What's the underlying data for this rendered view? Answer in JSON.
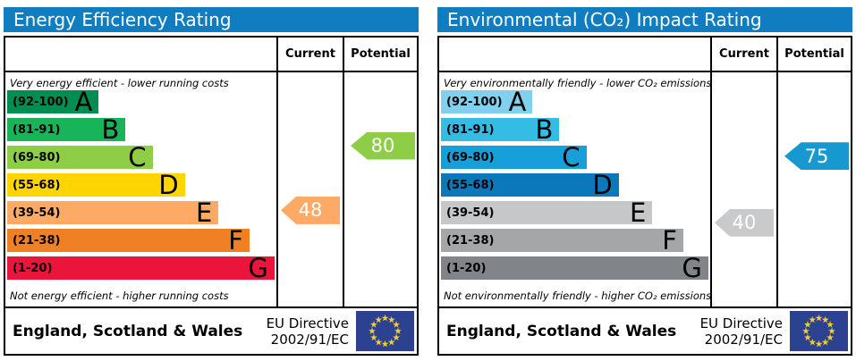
{
  "eu_flag": {
    "background": "#2d4191",
    "star_color": "#f2cf3a"
  },
  "panels": [
    {
      "title": "Energy Efficiency Rating",
      "header_color": "#0f7dc0",
      "current_label": "Current",
      "potential_label": "Potential",
      "top_note": "Very energy efficient - lower running costs",
      "bottom_note": "Not energy efficient - higher running costs",
      "bands": [
        {
          "letter": "A",
          "label": "(92-100)",
          "min": 92,
          "max": 100,
          "color": "#008d52",
          "width_pct": 34
        },
        {
          "letter": "B",
          "label": "(81-91)",
          "min": 81,
          "max": 91,
          "color": "#17b459",
          "width_pct": 44
        },
        {
          "letter": "C",
          "label": "(69-80)",
          "min": 69,
          "max": 80,
          "color": "#8dce46",
          "width_pct": 54
        },
        {
          "letter": "D",
          "label": "(55-68)",
          "min": 55,
          "max": 68,
          "color": "#ffd500",
          "width_pct": 66
        },
        {
          "letter": "E",
          "label": "(39-54)",
          "min": 39,
          "max": 54,
          "color": "#fcaa65",
          "width_pct": 78.5
        },
        {
          "letter": "F",
          "label": "(21-38)",
          "min": 21,
          "max": 38,
          "color": "#ef8023",
          "width_pct": 90
        },
        {
          "letter": "G",
          "label": "(1-20)",
          "min": 1,
          "max": 20,
          "color": "#e9153b",
          "width_pct": 99.3
        }
      ],
      "current": {
        "value": 48,
        "color": "#fcaa65"
      },
      "potential": {
        "value": 80,
        "color": "#8dce46"
      },
      "footer_region": "England, Scotland & Wales",
      "directive_line1": "EU Directive",
      "directive_line2": "2002/91/EC"
    },
    {
      "title": "Environmental (CO₂) Impact Rating",
      "header_color": "#0f7dc0",
      "current_label": "Current",
      "potential_label": "Potential",
      "top_note": "Very environmentally friendly - lower CO₂ emissions",
      "bottom_note": "Not environmentally friendly - higher CO₂ emissions",
      "bands": [
        {
          "letter": "A",
          "label": "(92-100)",
          "min": 92,
          "max": 100,
          "color": "#7fd1ee",
          "width_pct": 34
        },
        {
          "letter": "B",
          "label": "(81-91)",
          "min": 81,
          "max": 91,
          "color": "#35bce4",
          "width_pct": 44
        },
        {
          "letter": "C",
          "label": "(69-80)",
          "min": 69,
          "max": 80,
          "color": "#169fd8",
          "width_pct": 54
        },
        {
          "letter": "D",
          "label": "(55-68)",
          "min": 55,
          "max": 68,
          "color": "#0b79b9",
          "width_pct": 66
        },
        {
          "letter": "E",
          "label": "(39-54)",
          "min": 39,
          "max": 54,
          "color": "#c6c7c8",
          "width_pct": 78.5
        },
        {
          "letter": "F",
          "label": "(21-38)",
          "min": 21,
          "max": 38,
          "color": "#a4a6a8",
          "width_pct": 90
        },
        {
          "letter": "G",
          "label": "(1-20)",
          "min": 1,
          "max": 20,
          "color": "#818488",
          "width_pct": 99.3
        }
      ],
      "current": {
        "value": 40,
        "color": "#c9cacb"
      },
      "potential": {
        "value": 75,
        "color": "#1898d1"
      },
      "footer_region": "England, Scotland & Wales",
      "directive_line1": "EU Directive",
      "directive_line2": "2002/91/EC"
    }
  ],
  "chart_data": [
    {
      "type": "bar",
      "title": "Energy Efficiency Rating",
      "orientation": "horizontal",
      "categories": [
        "A (92-100)",
        "B (81-91)",
        "C (69-80)",
        "D (55-68)",
        "E (39-54)",
        "F (21-38)",
        "G (1-20)"
      ],
      "band_bar_lengths_pct": [
        34,
        44,
        54,
        66,
        78.5,
        90,
        99.3
      ],
      "series": [
        {
          "name": "Current",
          "values": [
            48
          ],
          "band": "E"
        },
        {
          "name": "Potential",
          "values": [
            80
          ],
          "band": "C"
        }
      ],
      "xlim": [
        1,
        100
      ],
      "annotations": [
        "Very energy efficient - lower running costs",
        "Not energy efficient - higher running costs"
      ]
    },
    {
      "type": "bar",
      "title": "Environmental (CO₂) Impact Rating",
      "orientation": "horizontal",
      "categories": [
        "A (92-100)",
        "B (81-91)",
        "C (69-80)",
        "D (55-68)",
        "E (39-54)",
        "F (21-38)",
        "G (1-20)"
      ],
      "band_bar_lengths_pct": [
        34,
        44,
        54,
        66,
        78.5,
        90,
        99.3
      ],
      "series": [
        {
          "name": "Current",
          "values": [
            40
          ],
          "band": "E"
        },
        {
          "name": "Potential",
          "values": [
            75
          ],
          "band": "C"
        }
      ],
      "xlim": [
        1,
        100
      ],
      "annotations": [
        "Very environmentally friendly - lower CO₂ emissions",
        "Not environmentally friendly - higher CO₂ emissions"
      ]
    }
  ]
}
